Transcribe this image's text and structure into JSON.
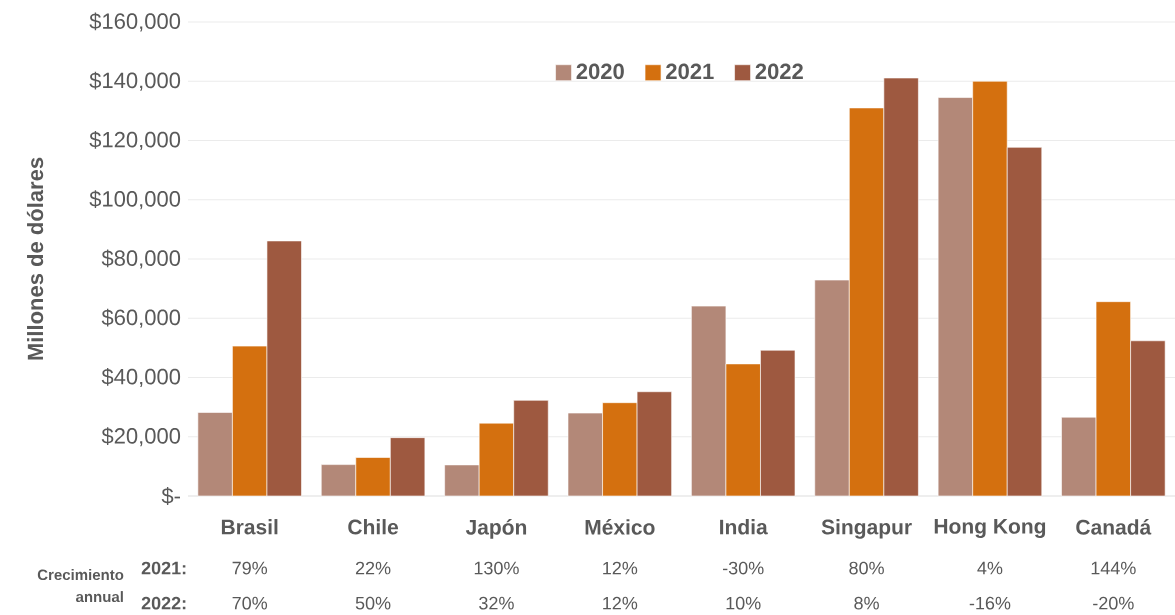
{
  "chart_data": {
    "type": "bar",
    "ylabel": "Millones de dólares",
    "categories": [
      "Brasil",
      "Chile",
      "Japón",
      "México",
      "India",
      "Singapur",
      "Hong Kong",
      "Canadá"
    ],
    "series": [
      {
        "name": "2020",
        "color": "#b38878",
        "values": [
          28200,
          10600,
          10500,
          28000,
          64100,
          72900,
          134500,
          26600
        ]
      },
      {
        "name": "2021",
        "color": "#d4700f",
        "values": [
          50600,
          13000,
          24600,
          31500,
          44600,
          131000,
          140000,
          65600
        ]
      },
      {
        "name": "2022",
        "color": "#9e5940",
        "values": [
          86100,
          19700,
          32300,
          35200,
          49200,
          141100,
          117700,
          52400
        ]
      }
    ],
    "ylim": [
      0,
      160000
    ],
    "yticks": [
      {
        "value": 0,
        "label": "$-"
      },
      {
        "value": 20000,
        "label": "$20,000"
      },
      {
        "value": 40000,
        "label": "$40,000"
      },
      {
        "value": 60000,
        "label": "$60,000"
      },
      {
        "value": 80000,
        "label": "$80,000"
      },
      {
        "value": 100000,
        "label": "$100,000"
      },
      {
        "value": 120000,
        "label": "$120,000"
      },
      {
        "value": 140000,
        "label": "$140,000"
      },
      {
        "value": 160000,
        "label": "$160,000"
      }
    ],
    "grid": "y",
    "legend": "top",
    "annotations": [
      "Crecimiento annual",
      "2021:",
      "2022:",
      "79%",
      "22%",
      "130%",
      "12%",
      "-30%",
      "80%",
      "4%",
      "144%",
      "70%",
      "50%",
      "32%",
      "12%",
      "10%",
      "8%",
      "-16%",
      "-20%"
    ]
  }
}
